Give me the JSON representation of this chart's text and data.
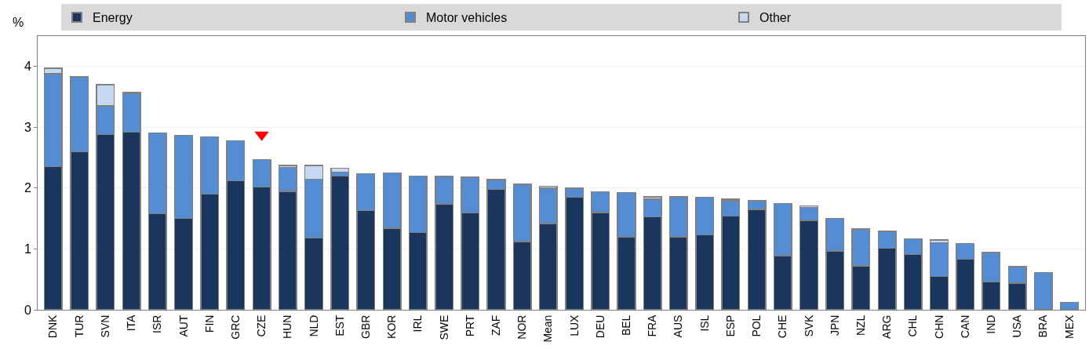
{
  "chart_data": {
    "type": "bar",
    "stacked": true,
    "ylabel": "%",
    "legend": "top",
    "grid": "y",
    "ylim": [
      0,
      4.5
    ],
    "yticks": [
      0,
      1,
      2,
      3,
      4
    ],
    "categories": [
      "DNK",
      "TUR",
      "SVN",
      "ITA",
      "ISR",
      "AUT",
      "FIN",
      "GRC",
      "CZE",
      "HUN",
      "NLD",
      "EST",
      "GBR",
      "KOR",
      "IRL",
      "SWE",
      "PRT",
      "ZAF",
      "NOR",
      "Mean",
      "LUX",
      "DEU",
      "BEL",
      "FRA",
      "AUS",
      "ISL",
      "ESP",
      "POL",
      "CHE",
      "SVK",
      "JPN",
      "NZL",
      "ARG",
      "CHL",
      "CHN",
      "CAN",
      "IND",
      "USA",
      "BRA",
      "MEX"
    ],
    "series": [
      {
        "name": "Energy",
        "color": "#1a365d",
        "values": [
          2.35,
          2.6,
          2.88,
          2.92,
          1.58,
          1.5,
          1.9,
          2.12,
          2.02,
          1.95,
          1.18,
          2.2,
          1.63,
          1.34,
          1.27,
          1.74,
          1.59,
          1.98,
          1.12,
          1.42,
          1.85,
          1.6,
          1.2,
          1.53,
          1.2,
          1.23,
          1.54,
          1.65,
          0.89,
          1.47,
          0.97,
          0.72,
          1.01,
          0.91,
          0.55,
          0.83,
          0.46,
          0.44,
          0,
          0
        ]
      },
      {
        "name": "Motor vehicles",
        "color": "#548dd4",
        "values": [
          1.53,
          1.23,
          0.47,
          0.63,
          1.33,
          1.37,
          0.94,
          0.66,
          0.45,
          0.39,
          0.97,
          0.06,
          0.61,
          0.91,
          0.93,
          0.45,
          0.59,
          0.16,
          0.94,
          0.58,
          0.15,
          0.34,
          0.73,
          0.29,
          0.66,
          0.62,
          0.25,
          0.14,
          0.86,
          0.21,
          0.53,
          0.61,
          0.28,
          0.26,
          0.55,
          0.26,
          0.48,
          0.27,
          0.61,
          0.12
        ]
      },
      {
        "name": "Other",
        "color": "#c6d9f1",
        "values": [
          0.09,
          0,
          0.35,
          0.02,
          0,
          0,
          0,
          0,
          0,
          0.03,
          0.22,
          0.07,
          0,
          0,
          0,
          0,
          0,
          0,
          0,
          0.03,
          0,
          0,
          0,
          0.04,
          0,
          0,
          0.03,
          0,
          0,
          0.03,
          0,
          0,
          0,
          0,
          0.05,
          0,
          0,
          0,
          0,
          0
        ]
      },
      {
        "type": "scatter",
        "marker": "triangle",
        "color": "#ff0000",
        "x": [
          "CZE"
        ],
        "values": [
          2.88
        ]
      }
    ]
  }
}
